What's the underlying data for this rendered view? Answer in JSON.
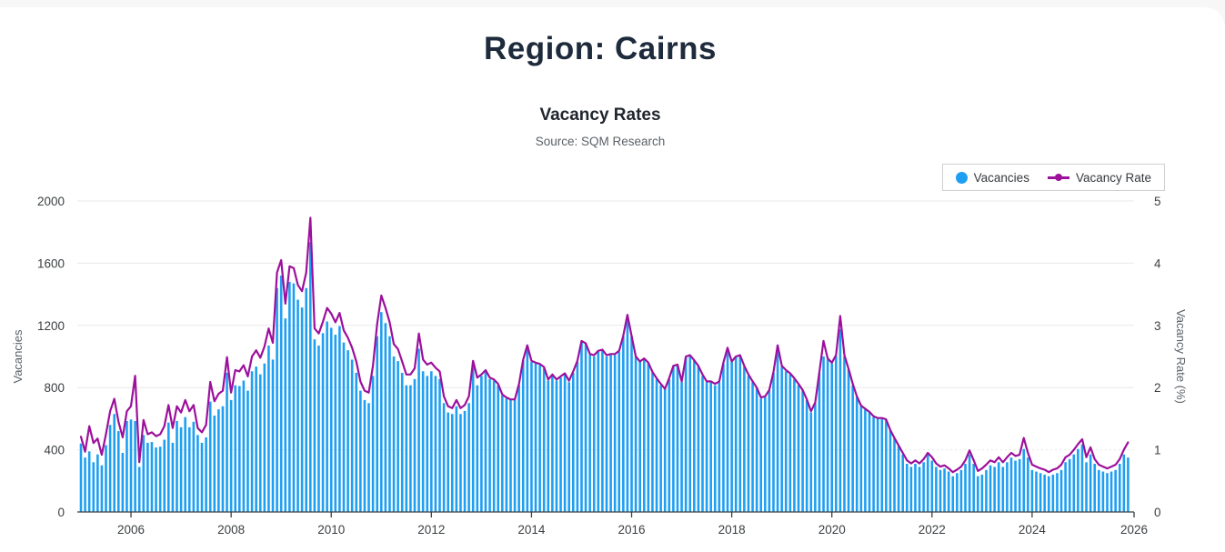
{
  "page": {
    "title": "Region: Cairns"
  },
  "chart": {
    "title": "Vacancy Rates",
    "source": "Source: SQM Research",
    "legend": [
      {
        "label": "Vacancies",
        "color": "#1f9ff2",
        "marker": "circle-icon"
      },
      {
        "label": "Vacancy Rate",
        "color": "#9c109c",
        "marker": "line-dot-icon"
      }
    ]
  },
  "chart_data": {
    "type": "bar+line",
    "title": "Vacancy Rates",
    "subtitle": "Source: SQM Research",
    "x_start": "2005-01",
    "x_months": 252,
    "x_tick_years": [
      2006,
      2008,
      2010,
      2012,
      2014,
      2016,
      2018,
      2020,
      2022,
      2024,
      2026
    ],
    "left_axis": {
      "label": "Vacancies",
      "ticks": [
        0,
        400,
        800,
        1200,
        1600,
        2000
      ],
      "range": [
        0,
        2000
      ]
    },
    "right_axis": {
      "label": "Vacancy Rate (%)",
      "ticks": [
        0,
        1,
        2,
        3,
        4,
        5
      ],
      "range": [
        0,
        5
      ]
    },
    "grid": "horizontal",
    "legend_position": "top-right",
    "colors": {
      "bar": "#1f9ff2",
      "line": "#9c109c",
      "axis": "#3c4043",
      "grid": "#e8e8e8"
    },
    "series": [
      {
        "name": "Vacancies",
        "type": "bar",
        "axis": "left",
        "color": "#1f9ff2",
        "values": [
          440,
          350,
          390,
          320,
          370,
          300,
          430,
          560,
          630,
          520,
          380,
          585,
          595,
          585,
          290,
          495,
          445,
          450,
          415,
          420,
          465,
          575,
          445,
          585,
          545,
          610,
          545,
          580,
          495,
          445,
          480,
          710,
          620,
          660,
          680,
          895,
          720,
          815,
          810,
          845,
          780,
          905,
          935,
          885,
          955,
          1070,
          980,
          1440,
          1520,
          1245,
          1480,
          1470,
          1365,
          1315,
          1440,
          1735,
          1110,
          1070,
          1150,
          1225,
          1185,
          1140,
          1195,
          1090,
          1040,
          980,
          895,
          780,
          720,
          700,
          875,
          1130,
          1285,
          1215,
          1130,
          1000,
          970,
          895,
          815,
          815,
          855,
          1050,
          905,
          875,
          905,
          875,
          855,
          700,
          640,
          630,
          680,
          630,
          650,
          700,
          965,
          815,
          875,
          905,
          855,
          845,
          815,
          750,
          730,
          720,
          720,
          815,
          975,
          1070,
          965,
          955,
          945,
          925,
          845,
          875,
          845,
          865,
          885,
          835,
          895,
          965,
          1095,
          1080,
          1010,
          1000,
          1030,
          1040,
          1000,
          1010,
          1010,
          1030,
          1130,
          1265,
          1130,
          995,
          965,
          980,
          955,
          895,
          855,
          815,
          790,
          855,
          935,
          945,
          835,
          995,
          1000,
          975,
          935,
          875,
          835,
          835,
          815,
          835,
          955,
          1050,
          965,
          995,
          1000,
          935,
          875,
          835,
          795,
          730,
          740,
          780,
          895,
          1070,
          935,
          905,
          885,
          855,
          815,
          780,
          720,
          640,
          700,
          895,
          1000,
          980,
          955,
          1000,
          1175,
          1000,
          915,
          815,
          740,
          680,
          660,
          640,
          610,
          600,
          600,
          590,
          525,
          475,
          425,
          370,
          310,
          290,
          310,
          290,
          320,
          370,
          330,
          290,
          270,
          280,
          260,
          230,
          250,
          270,
          310,
          370,
          310,
          230,
          240,
          270,
          300,
          290,
          320,
          290,
          320,
          350,
          330,
          340,
          405,
          350,
          270,
          260,
          250,
          240,
          230,
          240,
          250,
          270,
          320,
          340,
          370,
          405,
          435,
          320,
          370,
          310,
          270,
          260,
          250,
          260,
          270,
          310,
          370,
          350
        ]
      },
      {
        "name": "Vacancy Rate",
        "type": "line",
        "axis": "right",
        "color": "#9c109c",
        "values": [
          1.21,
          0.97,
          1.38,
          1.11,
          1.18,
          0.92,
          1.25,
          1.62,
          1.82,
          1.45,
          1.2,
          1.62,
          1.7,
          2.19,
          0.8,
          1.48,
          1.25,
          1.28,
          1.22,
          1.25,
          1.38,
          1.72,
          1.35,
          1.7,
          1.6,
          1.8,
          1.62,
          1.72,
          1.35,
          1.28,
          1.4,
          2.09,
          1.78,
          1.9,
          1.95,
          2.49,
          1.92,
          2.28,
          2.26,
          2.36,
          2.18,
          2.5,
          2.6,
          2.48,
          2.66,
          2.95,
          2.72,
          3.85,
          4.05,
          3.35,
          3.95,
          3.92,
          3.65,
          3.55,
          3.85,
          4.73,
          2.95,
          2.87,
          3.06,
          3.28,
          3.19,
          3.05,
          3.2,
          2.92,
          2.8,
          2.64,
          2.42,
          2.1,
          1.95,
          1.92,
          2.35,
          3.02,
          3.48,
          3.28,
          3.05,
          2.7,
          2.62,
          2.42,
          2.21,
          2.21,
          2.31,
          2.87,
          2.45,
          2.37,
          2.4,
          2.32,
          2.26,
          1.86,
          1.7,
          1.67,
          1.8,
          1.67,
          1.72,
          1.86,
          2.43,
          2.16,
          2.21,
          2.28,
          2.16,
          2.13,
          2.06,
          1.89,
          1.84,
          1.81,
          1.81,
          2.06,
          2.45,
          2.68,
          2.43,
          2.4,
          2.38,
          2.33,
          2.13,
          2.21,
          2.13,
          2.18,
          2.23,
          2.11,
          2.26,
          2.43,
          2.75,
          2.71,
          2.54,
          2.52,
          2.59,
          2.61,
          2.52,
          2.54,
          2.54,
          2.59,
          2.83,
          3.17,
          2.83,
          2.5,
          2.42,
          2.47,
          2.4,
          2.25,
          2.15,
          2.06,
          1.98,
          2.15,
          2.35,
          2.37,
          2.1,
          2.5,
          2.52,
          2.44,
          2.35,
          2.21,
          2.1,
          2.1,
          2.06,
          2.1,
          2.4,
          2.64,
          2.42,
          2.5,
          2.52,
          2.35,
          2.21,
          2.1,
          2.0,
          1.84,
          1.86,
          1.96,
          2.25,
          2.68,
          2.35,
          2.28,
          2.23,
          2.15,
          2.06,
          1.96,
          1.81,
          1.62,
          1.76,
          2.25,
          2.75,
          2.47,
          2.4,
          2.52,
          3.15,
          2.52,
          2.3,
          2.06,
          1.86,
          1.71,
          1.66,
          1.61,
          1.54,
          1.51,
          1.51,
          1.49,
          1.32,
          1.19,
          1.07,
          0.95,
          0.83,
          0.78,
          0.83,
          0.78,
          0.85,
          0.95,
          0.88,
          0.78,
          0.73,
          0.75,
          0.7,
          0.64,
          0.68,
          0.73,
          0.83,
          0.99,
          0.83,
          0.66,
          0.7,
          0.76,
          0.83,
          0.8,
          0.88,
          0.8,
          0.88,
          0.95,
          0.9,
          0.92,
          1.19,
          0.95,
          0.76,
          0.73,
          0.7,
          0.68,
          0.64,
          0.68,
          0.7,
          0.76,
          0.88,
          0.92,
          1.0,
          1.09,
          1.17,
          0.88,
          1.04,
          0.85,
          0.76,
          0.73,
          0.7,
          0.73,
          0.76,
          0.85,
          1.0,
          1.12
        ]
      }
    ]
  }
}
